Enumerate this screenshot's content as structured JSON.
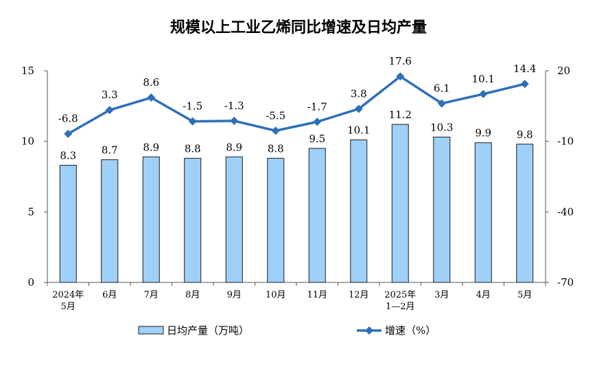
{
  "chart_data": {
    "type": "bar",
    "title": "规模以上工业乙烯同比增速及日均产量",
    "categories": [
      [
        "2024年",
        "5月"
      ],
      [
        "6月"
      ],
      [
        "7月"
      ],
      [
        "8月"
      ],
      [
        "9月"
      ],
      [
        "10月"
      ],
      [
        "11月"
      ],
      [
        "12月"
      ],
      [
        "2025年",
        "1—2月"
      ],
      [
        "3月"
      ],
      [
        "4月"
      ],
      [
        "5月"
      ]
    ],
    "series": [
      {
        "name": "日均产量（万吨）",
        "type": "bar",
        "axis": "left",
        "color": "#9fd0f7",
        "values": [
          8.3,
          8.7,
          8.9,
          8.8,
          8.9,
          8.8,
          9.5,
          10.1,
          11.2,
          10.3,
          9.9,
          9.8
        ],
        "labels": [
          "8.3",
          "8.7",
          "8.9",
          "8.8",
          "8.9",
          "8.8",
          "9.5",
          "10.1",
          "11.2",
          "10.3",
          "9.9",
          "9.8"
        ]
      },
      {
        "name": "增速（%）",
        "type": "line",
        "axis": "right",
        "color": "#2e6fb8",
        "marker": "diamond",
        "values": [
          -6.8,
          3.3,
          8.6,
          -1.5,
          -1.3,
          -5.5,
          -1.7,
          3.8,
          17.6,
          6.1,
          10.1,
          14.4
        ],
        "labels": [
          "-6.8",
          "3.3",
          "8.6",
          "-1.5",
          "-1.3",
          "-5.5",
          "-1.7",
          "3.8",
          "17.6",
          "6.1",
          "10.1",
          "14.4"
        ]
      }
    ],
    "y_left": {
      "min": 0,
      "max": 15,
      "ticks": [
        "0",
        "5",
        "10",
        "15"
      ]
    },
    "y_right": {
      "min": -70,
      "max": 20,
      "ticks": [
        "-70",
        "-40",
        "-10",
        "20"
      ]
    },
    "legend_position": "bottom",
    "grid": false
  }
}
